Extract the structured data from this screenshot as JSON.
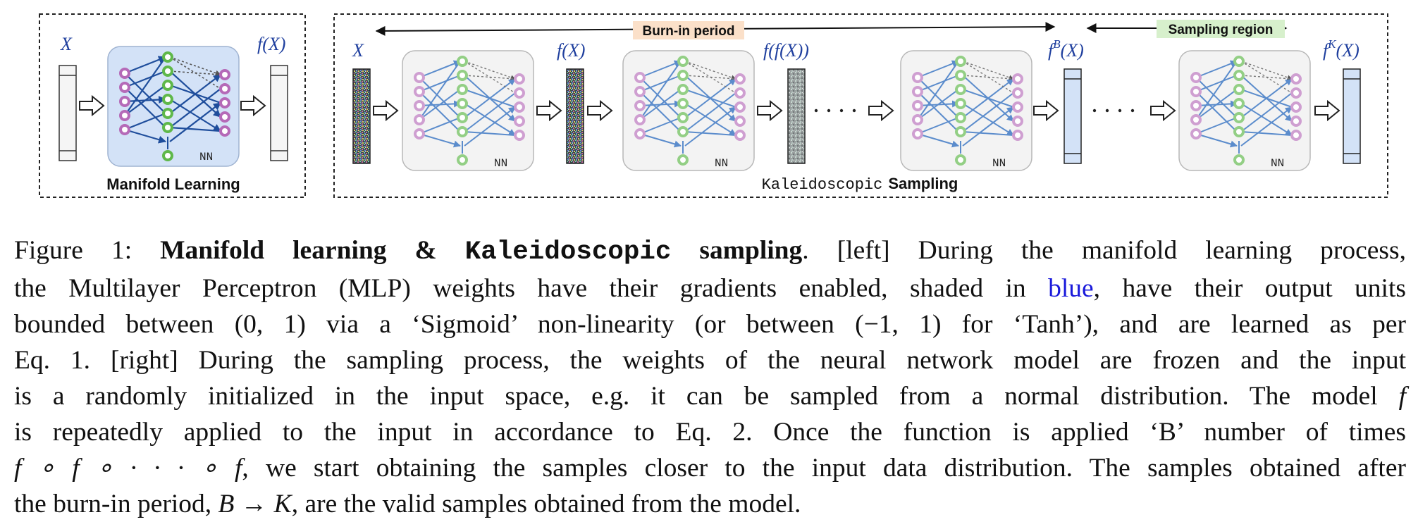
{
  "figure": {
    "left_panel": {
      "input_label": "X",
      "output_label": "f(X)",
      "nn_label": "NN",
      "title": "Manifold Learning"
    },
    "right_panel": {
      "burn_in_label": "Burn-in period",
      "sampling_region_label": "Sampling region",
      "labels": [
        "X",
        "f(X)",
        "f(f(X))",
        "f^B(X)",
        "f^K(X)"
      ],
      "label_x": "X",
      "label_fx": "f(X)",
      "label_ffx": "f(f(X))",
      "label_fb_base": "f",
      "label_fb_sup": "B",
      "label_fb_arg": "(X)",
      "label_fk_base": "f",
      "label_fk_sup": "K",
      "label_fk_arg": "(X)",
      "nn_label": "NN",
      "title_mono": "Kaleidoscopic",
      "title_sans": "Sampling"
    },
    "colors": {
      "blue_box": "#d3e2f7",
      "gray_box": "#f3f3f3",
      "node_purple": "#b56ab8",
      "node_green": "#5fb84a",
      "edge_blue": "#1f4e9c",
      "edge_blue_light": "#5b8ccc",
      "burn_in_bg": "#fbe0c9",
      "sampling_bg": "#d7f0cc",
      "label_blue": "#1f3f9e"
    }
  },
  "caption": {
    "l1_a": "Figure 1: ",
    "l1_b": "Manifold learning & ",
    "l1_c": "Kaleidoscopic",
    "l1_d": " sampling",
    "l1_e": ". [left] During the manifold learning process,",
    "l2_a": "the Multilayer Perceptron (MLP) weights have their gradients enabled, shaded in ",
    "l2_b": "blue",
    "l2_c": ", have their output units",
    "l3": "bounded between (0, 1) via a ‘Sigmoid’ non-linearity (or between (−1, 1) for ‘Tanh’), and are learned as per",
    "l4": "Eq. 1. [right] During the sampling process, the weights of the neural network model are frozen and the input",
    "l5_a": "is a randomly initialized in the input space, e.g. it can be sampled from a normal distribution. The model ",
    "l5_b": "f",
    "l6": "is repeatedly applied to the input in accordance to Eq. 2. Once the function is applied ‘B’ number of times",
    "l7_a": "f ∘ f ∘ · · · ∘ f",
    "l7_b": ", we start obtaining the samples closer to the input data distribution. The samples obtained after",
    "l8_a": "the burn-in period, ",
    "l8_b": "B → K",
    "l8_c": ", are the valid samples obtained from the model."
  }
}
